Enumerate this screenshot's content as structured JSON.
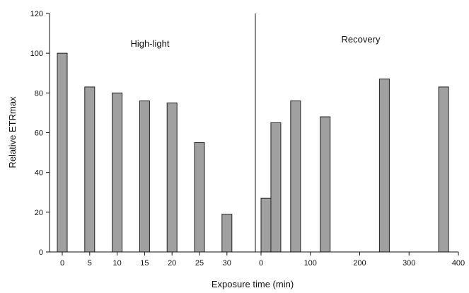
{
  "chart_data": {
    "type": "bar",
    "xlabel": "Exposure time (min)",
    "ylabel": "Relative ETRmax",
    "ylim": [
      0,
      120
    ],
    "yticks": [
      "0",
      "20",
      "40",
      "60",
      "80",
      "100",
      "120"
    ],
    "grid": false,
    "bar_color": "#a0a0a0",
    "bar_edge_color": "#222222",
    "panels": [
      {
        "label": "High-light",
        "x_axis": "categorical",
        "categories": [
          "0",
          "5",
          "10",
          "15",
          "20",
          "25",
          "30"
        ],
        "values": [
          100,
          83,
          80,
          76,
          75,
          55,
          19
        ]
      },
      {
        "label": "Recovery",
        "x_axis": "numeric",
        "xlim": [
          0,
          400
        ],
        "xticks": [
          "0",
          "100",
          "200",
          "300",
          "400"
        ],
        "x": [
          0,
          20,
          60,
          120,
          240,
          360
        ],
        "values": [
          27,
          65,
          76,
          68,
          87,
          83
        ]
      }
    ]
  }
}
